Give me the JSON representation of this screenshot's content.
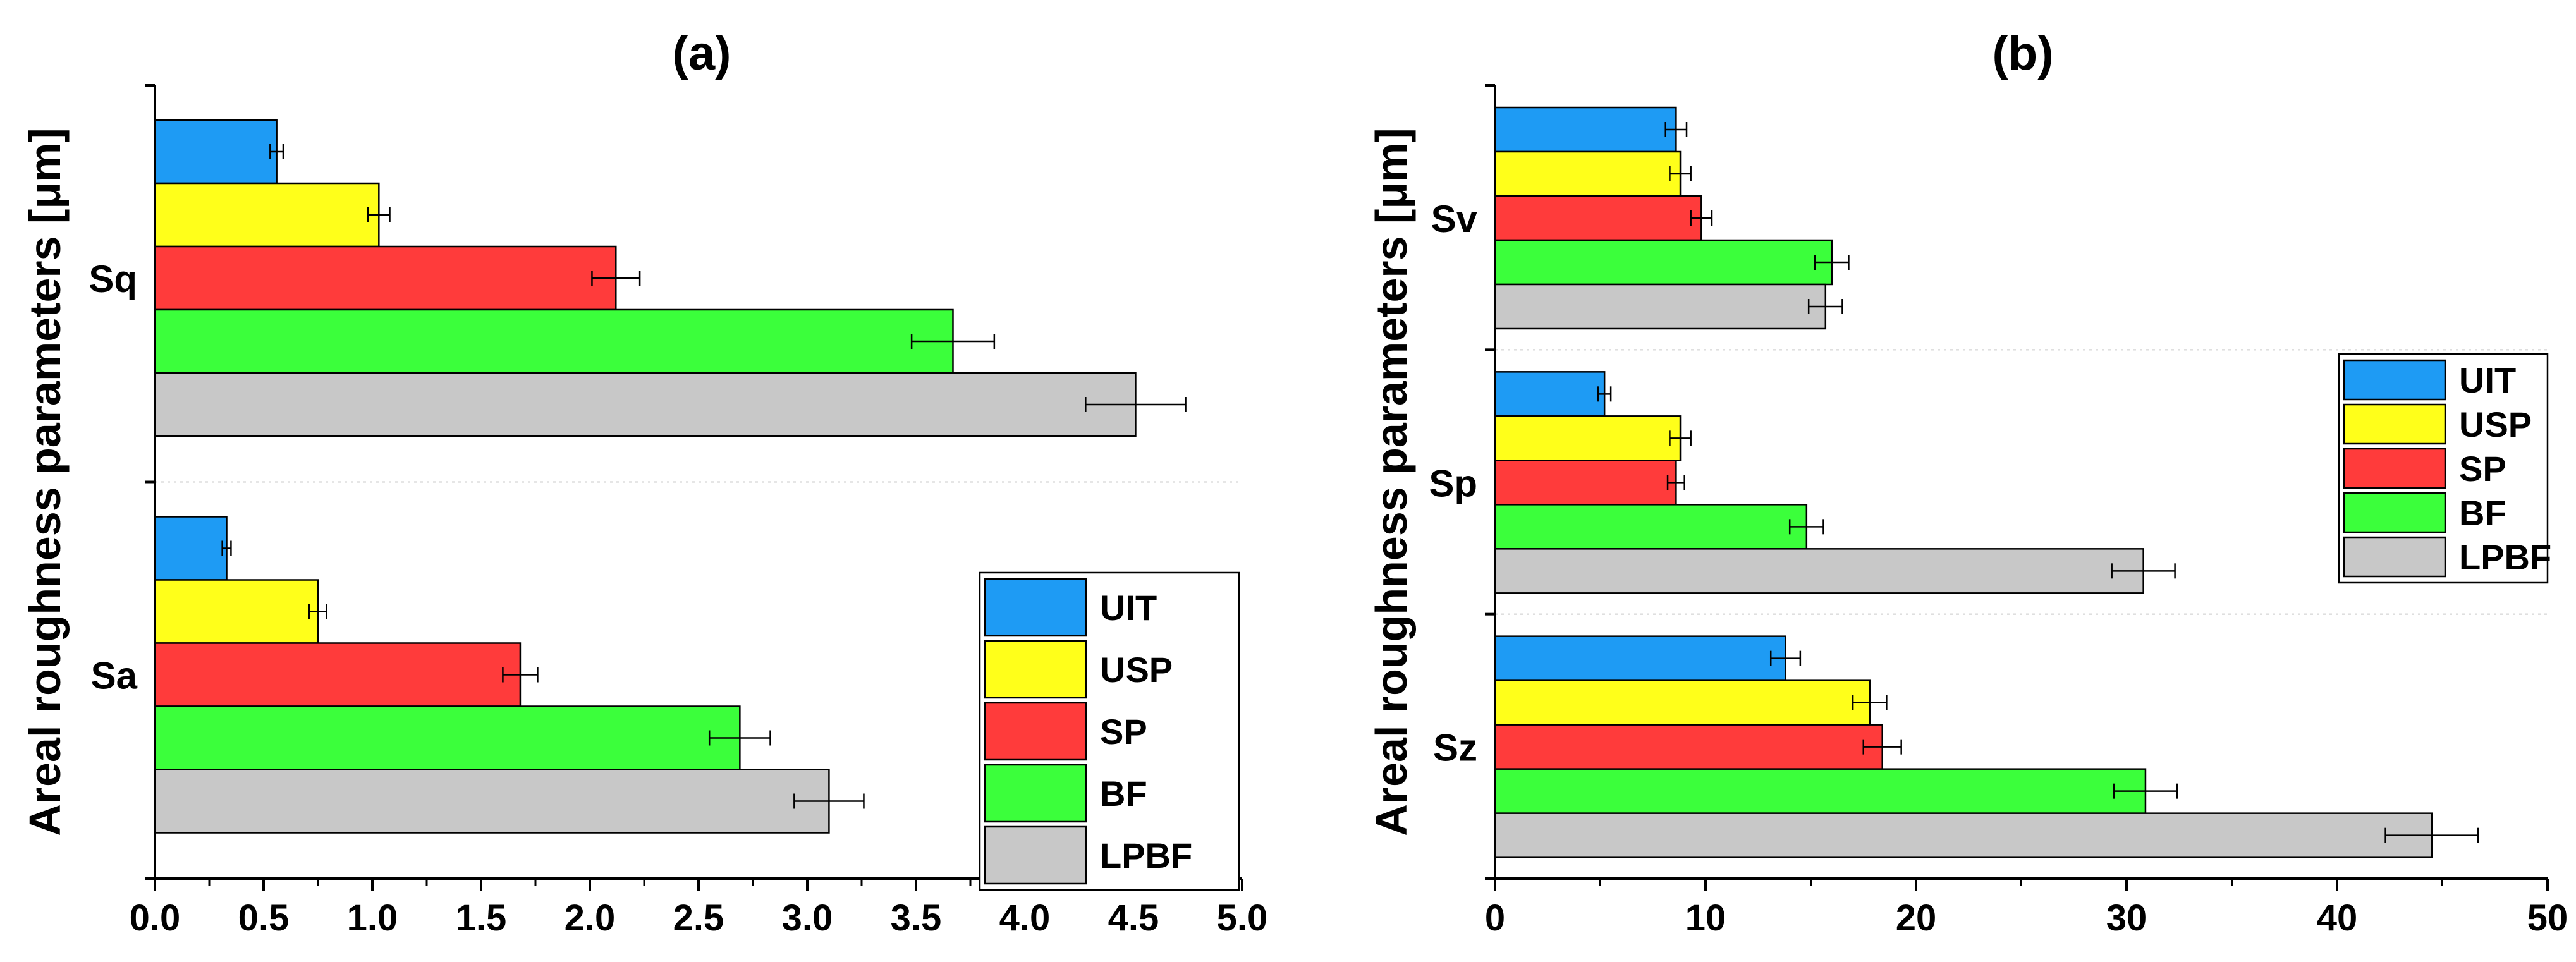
{
  "chart_data": [
    {
      "type": "bar",
      "orientation": "horizontal",
      "title": "(a)",
      "ylabel": "Areal roughness parameters [μm]",
      "xlabel": "",
      "xlim": [
        0,
        5
      ],
      "xticks": [
        "0.0",
        "0.5",
        "1.0",
        "1.5",
        "2.0",
        "2.5",
        "3.0",
        "3.5",
        "4.0",
        "4.5",
        "5.0"
      ],
      "tick_values": [
        0,
        0.5,
        1,
        1.5,
        2,
        2.5,
        3,
        3.5,
        4,
        4.5,
        5
      ],
      "categories": [
        "Sq",
        "Sa"
      ],
      "series": [
        {
          "name": "UIT",
          "color": "#1e9bf4",
          "values": [
            0.56,
            0.33
          ],
          "errors": [
            0.03,
            0.02
          ]
        },
        {
          "name": "USP",
          "color": "#ffff1a",
          "values": [
            1.03,
            0.75
          ],
          "errors": [
            0.05,
            0.04
          ]
        },
        {
          "name": "SP",
          "color": "#ff3b3b",
          "values": [
            2.12,
            1.68
          ],
          "errors": [
            0.11,
            0.08
          ]
        },
        {
          "name": "BF",
          "color": "#3bff3b",
          "values": [
            3.67,
            2.69
          ],
          "errors": [
            0.19,
            0.14
          ]
        },
        {
          "name": "LPBF",
          "color": "#c8c8c8",
          "values": [
            4.51,
            3.1
          ],
          "errors": [
            0.23,
            0.16
          ]
        }
      ],
      "legend": {
        "position": "bottom-right",
        "entries": [
          "UIT",
          "USP",
          "SP",
          "BF",
          "LPBF"
        ]
      }
    },
    {
      "type": "bar",
      "orientation": "horizontal",
      "title": "(b)",
      "ylabel": "Areal roughness parameters [μm]",
      "xlabel": "",
      "xlim": [
        0,
        50
      ],
      "xticks": [
        "0",
        "10",
        "20",
        "30",
        "40",
        "50"
      ],
      "tick_values": [
        0,
        10,
        20,
        30,
        40,
        50
      ],
      "categories": [
        "Sv",
        "Sp",
        "Sz"
      ],
      "series": [
        {
          "name": "UIT",
          "color": "#1e9bf4",
          "values": [
            8.6,
            5.2,
            13.8
          ],
          "errors": [
            0.5,
            0.3,
            0.7
          ]
        },
        {
          "name": "USP",
          "color": "#ffff1a",
          "values": [
            8.8,
            8.8,
            17.8
          ],
          "errors": [
            0.5,
            0.5,
            0.8
          ]
        },
        {
          "name": "SP",
          "color": "#ff3b3b",
          "values": [
            9.8,
            8.6,
            18.4
          ],
          "errors": [
            0.5,
            0.4,
            0.9
          ]
        },
        {
          "name": "BF",
          "color": "#3bff3b",
          "values": [
            16.0,
            14.8,
            30.9
          ],
          "errors": [
            0.8,
            0.8,
            1.5
          ]
        },
        {
          "name": "LPBF",
          "color": "#c8c8c8",
          "values": [
            15.7,
            30.8,
            44.5
          ],
          "errors": [
            0.8,
            1.5,
            2.2
          ]
        }
      ],
      "legend": {
        "position": "top-right",
        "entries": [
          "UIT",
          "USP",
          "SP",
          "BF",
          "LPBF"
        ]
      }
    }
  ]
}
